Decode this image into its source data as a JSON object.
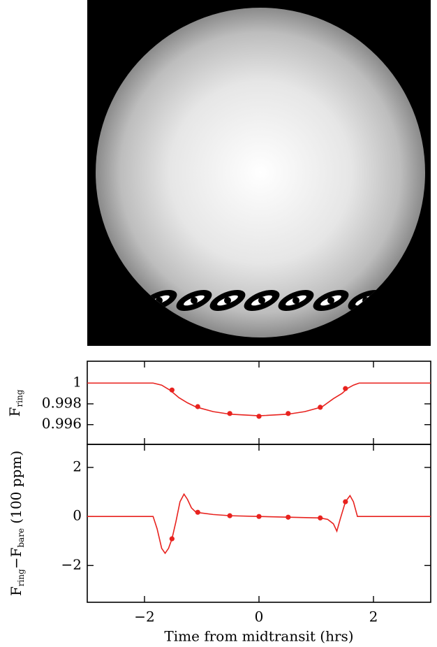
{
  "chart_data": [
    {
      "type": "line",
      "ylabel": [
        "F",
        "ring"
      ],
      "xlim": [
        -3,
        3
      ],
      "ylim": [
        0.9941,
        1.0021
      ],
      "yticks": [
        0.996,
        0.998,
        1
      ],
      "series": [
        {
          "color": "#e8221e",
          "x": [
            -3,
            -1.85,
            -1.7,
            -1.55,
            -1.4,
            -1.25,
            -1.1,
            -0.8,
            -0.5,
            0,
            0.5,
            0.8,
            1.1,
            1.3,
            1.45,
            1.55,
            1.65,
            1.75,
            3
          ],
          "values": [
            1,
            1,
            0.9998,
            0.9993,
            0.9986,
            0.9981,
            0.9977,
            0.99725,
            0.997,
            0.99685,
            0.997,
            0.99725,
            0.9977,
            0.9985,
            0.999,
            0.9995,
            0.9998,
            1,
            1
          ]
        }
      ],
      "points": {
        "color": "#e8221e",
        "x": [
          -1.52,
          -1.07,
          -0.51,
          0,
          0.51,
          1.07,
          1.51
        ],
        "values": [
          0.99933,
          0.99773,
          0.99707,
          0.9968,
          0.99707,
          0.99767,
          0.99947
        ]
      }
    },
    {
      "type": "line",
      "ylabel": [
        "F",
        "ring",
        "−F",
        "bare",
        " (100 ppm)"
      ],
      "xlabel": "Time from midtransit (hrs)",
      "xlim": [
        -3,
        3
      ],
      "ylim": [
        -3.5,
        2.94
      ],
      "xticks": [
        {
          "value": -2,
          "label": "−2"
        },
        0,
        2
      ],
      "yticks": [
        {
          "value": -2,
          "label": "−2"
        },
        0,
        2
      ],
      "series": [
        {
          "color": "#e8221e",
          "x": [
            -3,
            -1.85,
            -1.78,
            -1.7,
            -1.64,
            -1.58,
            -1.52,
            -1.45,
            -1.38,
            -1.31,
            -1.25,
            -1.18,
            -1.1,
            -0.8,
            -0.5,
            0,
            0.5,
            1.07,
            1.2,
            1.3,
            1.36,
            1.42,
            1.51,
            1.59,
            1.65,
            1.72,
            3
          ],
          "values": [
            0,
            0,
            -0.5,
            -1.3,
            -1.5,
            -1.3,
            -0.91,
            -0.2,
            0.6,
            0.91,
            0.7,
            0.35,
            0.17,
            0.08,
            0.03,
            0,
            -0.03,
            -0.06,
            -0.12,
            -0.3,
            -0.6,
            -0.1,
            0.6,
            0.85,
            0.6,
            0,
            0
          ]
        }
      ],
      "points": {
        "color": "#e8221e",
        "x": [
          -1.52,
          -1.07,
          -0.51,
          0,
          0.51,
          1.07,
          1.51
        ],
        "values": [
          -0.91,
          0.17,
          0.03,
          0,
          -0.03,
          -0.06,
          0.6
        ]
      }
    }
  ]
}
